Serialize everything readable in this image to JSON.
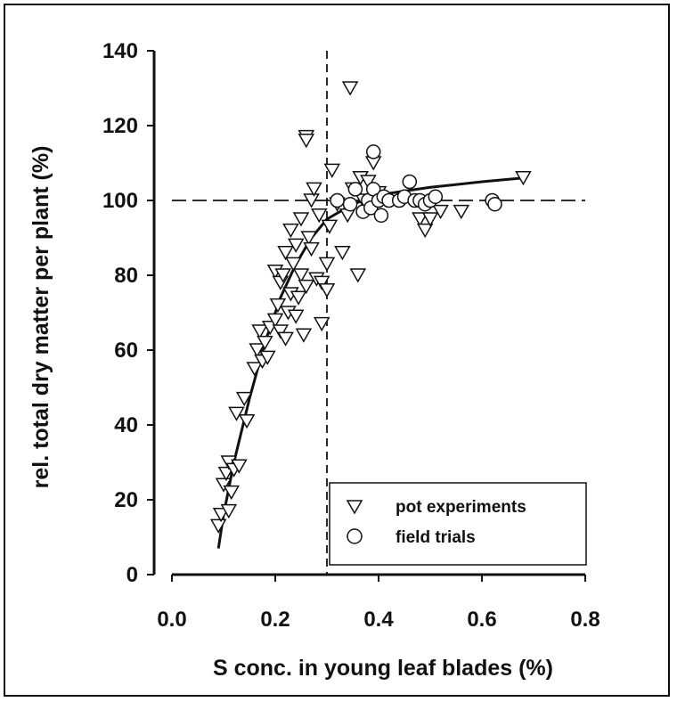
{
  "chart_data": {
    "type": "scatter",
    "title": "",
    "xlabel": "S conc. in young leaf blades (%)",
    "ylabel": "rel. total dry matter per plant (%)",
    "xlim": [
      0.0,
      0.8
    ],
    "ylim": [
      0,
      140
    ],
    "xticks": [
      "0.0",
      "0.2",
      "0.4",
      "0.6",
      "0.8"
    ],
    "yticks": [
      "0",
      "20",
      "40",
      "60",
      "80",
      "100",
      "120",
      "140"
    ],
    "grid": false,
    "legend_position": "bottom-right",
    "reference_lines": {
      "vertical_x": 0.3,
      "horizontal_y": 100
    },
    "series": [
      {
        "name": "pot experiments",
        "marker": "triangle-down-open",
        "points": [
          [
            0.09,
            13
          ],
          [
            0.095,
            16
          ],
          [
            0.1,
            24
          ],
          [
            0.105,
            27
          ],
          [
            0.11,
            17
          ],
          [
            0.11,
            30
          ],
          [
            0.115,
            22
          ],
          [
            0.12,
            28
          ],
          [
            0.125,
            43
          ],
          [
            0.13,
            29
          ],
          [
            0.14,
            47
          ],
          [
            0.145,
            41
          ],
          [
            0.16,
            55
          ],
          [
            0.165,
            60
          ],
          [
            0.17,
            65
          ],
          [
            0.175,
            57
          ],
          [
            0.18,
            62
          ],
          [
            0.185,
            58
          ],
          [
            0.19,
            66
          ],
          [
            0.2,
            68
          ],
          [
            0.2,
            81
          ],
          [
            0.205,
            72
          ],
          [
            0.21,
            65
          ],
          [
            0.21,
            78
          ],
          [
            0.215,
            80
          ],
          [
            0.22,
            63
          ],
          [
            0.22,
            86
          ],
          [
            0.225,
            70
          ],
          [
            0.23,
            75
          ],
          [
            0.23,
            92
          ],
          [
            0.235,
            83
          ],
          [
            0.24,
            69
          ],
          [
            0.24,
            88
          ],
          [
            0.245,
            74
          ],
          [
            0.25,
            80
          ],
          [
            0.25,
            95
          ],
          [
            0.255,
            64
          ],
          [
            0.26,
            77
          ],
          [
            0.26,
            117
          ],
          [
            0.26,
            116
          ],
          [
            0.265,
            90
          ],
          [
            0.27,
            87
          ],
          [
            0.27,
            100
          ],
          [
            0.275,
            103
          ],
          [
            0.28,
            79
          ],
          [
            0.285,
            96
          ],
          [
            0.29,
            67
          ],
          [
            0.29,
            78
          ],
          [
            0.3,
            76
          ],
          [
            0.3,
            83
          ],
          [
            0.305,
            93
          ],
          [
            0.31,
            108
          ],
          [
            0.32,
            99
          ],
          [
            0.33,
            86
          ],
          [
            0.34,
            96
          ],
          [
            0.345,
            130
          ],
          [
            0.35,
            103
          ],
          [
            0.36,
            80
          ],
          [
            0.365,
            106
          ],
          [
            0.37,
            100
          ],
          [
            0.38,
            105
          ],
          [
            0.39,
            110
          ],
          [
            0.4,
            102
          ],
          [
            0.48,
            95
          ],
          [
            0.49,
            92
          ],
          [
            0.5,
            95
          ],
          [
            0.52,
            97
          ],
          [
            0.56,
            97
          ],
          [
            0.68,
            106
          ]
        ]
      },
      {
        "name": "field trials",
        "marker": "circle-open",
        "points": [
          [
            0.32,
            100
          ],
          [
            0.345,
            99
          ],
          [
            0.355,
            103
          ],
          [
            0.37,
            97
          ],
          [
            0.38,
            100
          ],
          [
            0.385,
            98
          ],
          [
            0.39,
            113
          ],
          [
            0.39,
            103
          ],
          [
            0.4,
            100
          ],
          [
            0.405,
            96
          ],
          [
            0.41,
            101
          ],
          [
            0.42,
            100
          ],
          [
            0.44,
            100
          ],
          [
            0.45,
            101
          ],
          [
            0.46,
            105
          ],
          [
            0.47,
            100
          ],
          [
            0.48,
            100
          ],
          [
            0.49,
            99
          ],
          [
            0.5,
            100
          ],
          [
            0.51,
            101
          ],
          [
            0.62,
            100
          ],
          [
            0.625,
            99
          ]
        ]
      }
    ],
    "fit_curve": {
      "type": "line",
      "points": [
        [
          0.09,
          7
        ],
        [
          0.1,
          16
        ],
        [
          0.12,
          30
        ],
        [
          0.15,
          47
        ],
        [
          0.18,
          62
        ],
        [
          0.21,
          74
        ],
        [
          0.24,
          83
        ],
        [
          0.27,
          90
        ],
        [
          0.3,
          95
        ],
        [
          0.35,
          99
        ],
        [
          0.4,
          101.5
        ],
        [
          0.5,
          103.5
        ],
        [
          0.6,
          105
        ],
        [
          0.68,
          106
        ]
      ]
    }
  }
}
